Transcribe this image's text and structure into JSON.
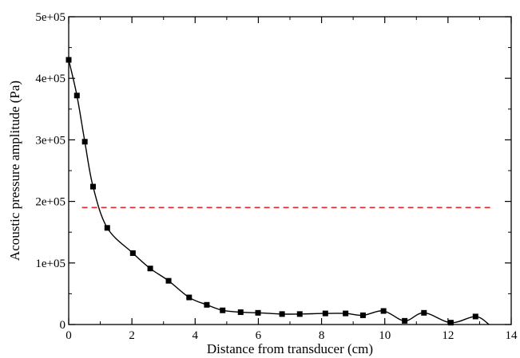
{
  "chart_data": {
    "type": "line",
    "title": "",
    "xlabel": "Distance from transducer (cm)",
    "ylabel": "Acoustic pressure amplitude (Pa)",
    "xlim": [
      0,
      14
    ],
    "ylim": [
      0,
      500000
    ],
    "x_ticks": [
      0,
      2,
      4,
      6,
      8,
      10,
      12,
      14
    ],
    "x_tick_labels": [
      "0",
      "2",
      "4",
      "6",
      "8",
      "10",
      "12",
      "14"
    ],
    "y_ticks": [
      0,
      100000,
      200000,
      300000,
      400000,
      500000
    ],
    "y_tick_labels": [
      "0",
      "1e+05",
      "2e+05",
      "3e+05",
      "4e+05",
      "5e+05"
    ],
    "grid": false,
    "legend": "none",
    "series": [
      {
        "style": "solid line with square markers",
        "color": "#000000",
        "x": [
          0.0,
          0.26,
          0.51,
          0.77,
          1.22,
          2.03,
          2.58,
          3.16,
          3.81,
          4.37,
          4.87,
          5.44,
          5.99,
          6.75,
          7.31,
          8.12,
          8.76,
          9.31,
          9.96,
          10.63,
          11.24,
          12.09,
          12.87
        ],
        "y": [
          430000,
          372000,
          297000,
          224000,
          157000,
          116000,
          91000,
          71000,
          44000,
          32000,
          23000,
          20000,
          19000,
          17000,
          17000,
          18000,
          18000,
          15000,
          22000,
          6000,
          19000,
          3000,
          13000
        ]
      },
      {
        "style": "dashed",
        "color": "#e8242b",
        "x": [
          0.42,
          13.35
        ],
        "y": [
          190000,
          190000
        ]
      }
    ]
  }
}
